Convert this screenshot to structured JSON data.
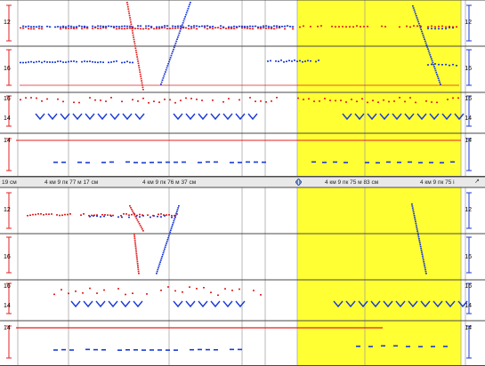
{
  "top_pane": {
    "tracks": [
      {
        "left_label": "12",
        "right_label": "12"
      },
      {
        "left_label": "16",
        "right_label": "16"
      },
      {
        "left_label": "16",
        "right_label": "16",
        "left_label_2": "14",
        "right_label_2": "14"
      },
      {
        "left_label": "14",
        "right_label": "14"
      }
    ]
  },
  "ruler": {
    "left_partial": "19 см",
    "marks": [
      "4 км 9 пк 77 м 17 см",
      "4 км 9 пк 76 м 37 см",
      "4 км 9 пк 75 м 83 см",
      "4 км 9 пк 75 і"
    ],
    "cursor_icon": "diamond-cursor-icon",
    "scroll_icon": "right-arrow-icon"
  },
  "bottom_pane": {
    "tracks": [
      {
        "left_label": "12",
        "right_label": "12"
      },
      {
        "left_label": "16",
        "right_label": "16"
      },
      {
        "left_label": "16",
        "right_label": "16",
        "left_label_2": "14",
        "right_label_2": "14"
      },
      {
        "left_label": "14",
        "right_label": "14"
      }
    ]
  },
  "colors": {
    "highlight": "#ffff33",
    "series_red": "#e02020",
    "series_blue": "#1a3ad8",
    "grid": "#9a9a9a",
    "reference_line": "#e02020"
  }
}
